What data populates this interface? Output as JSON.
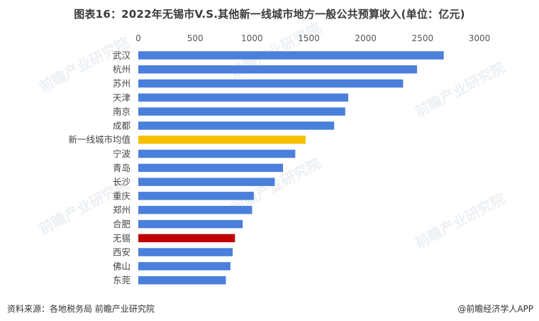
{
  "title": "图表16：2022年无锡市V.S.其他新一线城市地方一般公共预算收入(单位：亿元)",
  "footer": {
    "source": "资料来源：各地税务局 前瞻产业研究院",
    "app": "@前瞻经济学人APP"
  },
  "watermark": "前瞻产业研究院",
  "colors": {
    "default": "#4a7fdc",
    "highlight_avg": "#f8bf00",
    "highlight_city": "#c00000"
  },
  "chart_data": {
    "type": "bar",
    "orientation": "horizontal",
    "title": "2022年无锡市V.S.其他新一线城市地方一般公共预算收入(单位：亿元)",
    "xlabel": "",
    "ylabel": "",
    "xlim": [
      0,
      3000
    ],
    "ticks": [
      0,
      500,
      1000,
      1500,
      2000,
      2500,
      3000
    ],
    "categories": [
      "武汉",
      "杭州",
      "苏州",
      "天津",
      "南京",
      "成都",
      "新一线城市均值",
      "宁波",
      "青岛",
      "长沙",
      "重庆",
      "郑州",
      "合肥",
      "无锡",
      "西安",
      "佛山",
      "东莞"
    ],
    "values": [
      2686,
      2451,
      2329,
      1846,
      1820,
      1722,
      1471,
      1380,
      1273,
      1200,
      1016,
      1001,
      918,
      850,
      830,
      810,
      770
    ],
    "highlights": {
      "新一线城市均值": "highlight_avg",
      "无锡": "highlight_city"
    },
    "legend": "none"
  }
}
